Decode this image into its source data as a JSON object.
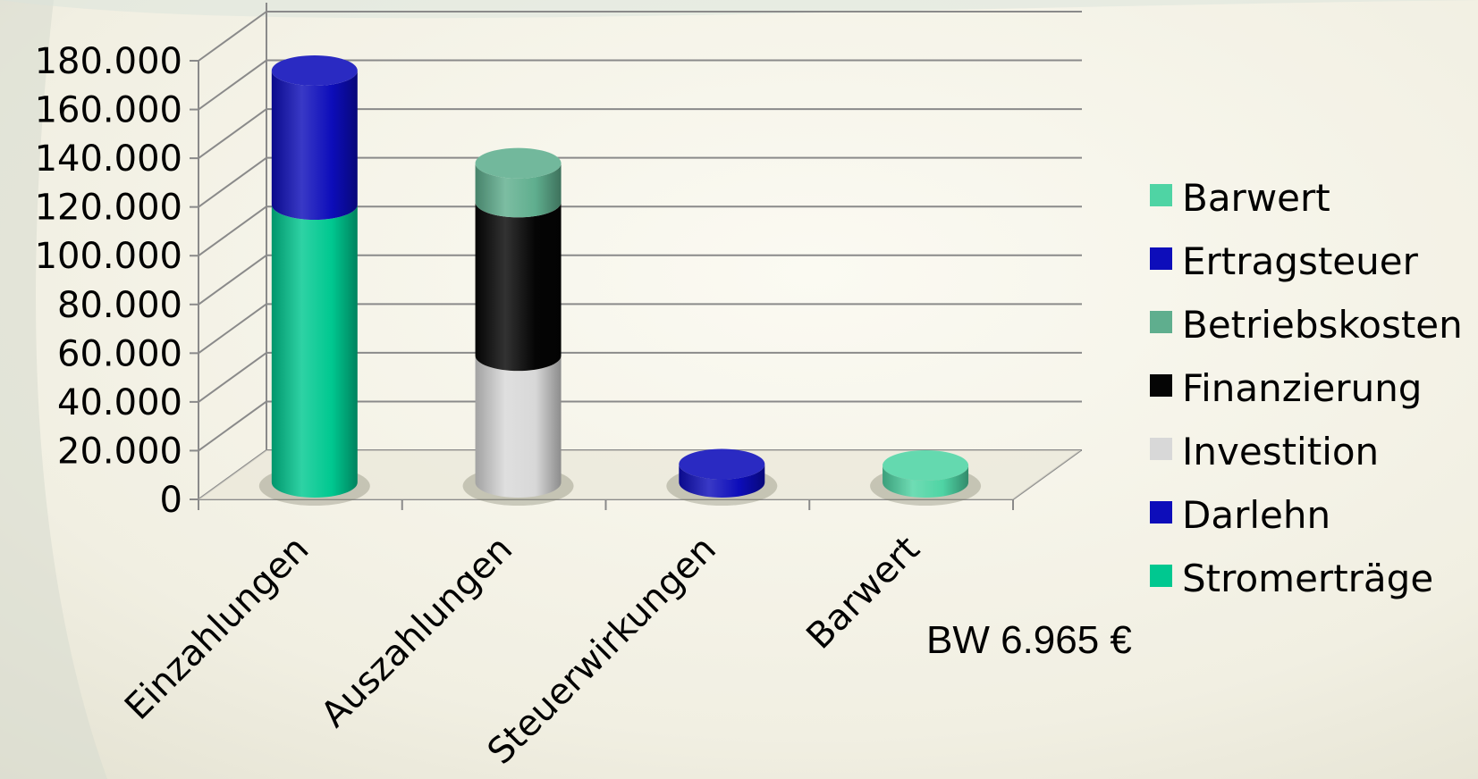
{
  "chart_data": {
    "type": "bar",
    "stacked": true,
    "three_d": true,
    "shape": "cylinder",
    "ylim": [
      0,
      180000
    ],
    "yticks": [
      0,
      20000,
      40000,
      60000,
      80000,
      100000,
      120000,
      140000,
      160000,
      180000
    ],
    "ytick_labels": [
      "0",
      "20.000",
      "40.000",
      "60.000",
      "80.000",
      "100.000",
      "120.000",
      "140.000",
      "160.000",
      "180.000"
    ],
    "categories": [
      "Einzahlungen",
      "Auszahlungen",
      "Steuerwirkungen",
      "Barwert"
    ],
    "series": [
      {
        "name": "Stromerträge",
        "color": "#00c890",
        "values": [
          114000,
          0,
          0,
          0
        ]
      },
      {
        "name": "Darlehn",
        "color": "#0d0dba",
        "values": [
          55000,
          0,
          0,
          0
        ]
      },
      {
        "name": "Investition",
        "color": "#d8d8d8",
        "values": [
          0,
          52000,
          0,
          0
        ]
      },
      {
        "name": "Finanzierung",
        "color": "#050505",
        "values": [
          0,
          63000,
          0,
          0
        ]
      },
      {
        "name": "Betriebskosten",
        "color": "#5fae8e",
        "values": [
          0,
          16000,
          0,
          0
        ]
      },
      {
        "name": "Ertragsteuer",
        "color": "#0d0dba",
        "values": [
          0,
          0,
          7500,
          0
        ]
      },
      {
        "name": "Barwert",
        "color": "#4fd4a4",
        "values": [
          0,
          0,
          0,
          6965
        ]
      }
    ],
    "legend_order": [
      "Barwert",
      "Ertragsteuer",
      "Betriebskosten",
      "Finanzierung",
      "Investition",
      "Darlehn",
      "Stromerträge"
    ],
    "legend_position": "right",
    "grid": true,
    "annotation": "BW 6.965 €"
  }
}
